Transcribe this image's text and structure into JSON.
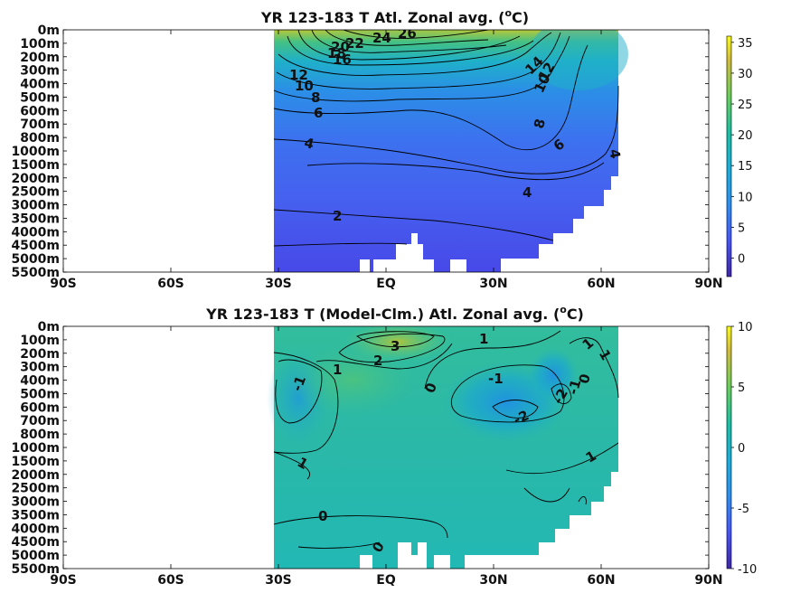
{
  "chart_data": [
    {
      "type": "heatmap",
      "title": "YR 123-183 T Atl. Zonal avg. (",
      "title_sup": "o",
      "title_unit": "C)",
      "y_ticks": [
        "0m",
        "100m",
        "200m",
        "300m",
        "400m",
        "500m",
        "600m",
        "700m",
        "800m",
        "1000m",
        "1500m",
        "2000m",
        "2500m",
        "3000m",
        "3500m",
        "4000m",
        "4500m",
        "5000m",
        "5500m"
      ],
      "x_ticks": [
        "90S",
        "60S",
        "30S",
        "EQ",
        "30N",
        "60N",
        "90N"
      ],
      "colorbar_ticks": [
        "35",
        "30",
        "25",
        "20",
        "15",
        "10",
        "5",
        "0"
      ],
      "colorbar_range": [
        -3,
        36
      ],
      "contour_labels": [
        "26",
        "24",
        "22",
        "20",
        "18",
        "16",
        "14",
        "12",
        "12",
        "10",
        "10",
        "8",
        "8",
        "6",
        "6",
        "4",
        "4",
        "4",
        "2"
      ]
    },
    {
      "type": "heatmap",
      "title": "YR 123-183 T (Model-Clm.) Atl. Zonal avg. (",
      "title_sup": "o",
      "title_unit": "C)",
      "y_ticks": [
        "0m",
        "100m",
        "200m",
        "300m",
        "400m",
        "500m",
        "600m",
        "700m",
        "800m",
        "1000m",
        "1500m",
        "2000m",
        "2500m",
        "3000m",
        "3500m",
        "4000m",
        "4500m",
        "5000m",
        "5500m"
      ],
      "x_ticks": [
        "90S",
        "60S",
        "30S",
        "EQ",
        "30N",
        "60N",
        "90N"
      ],
      "colorbar_ticks": [
        "10",
        "5",
        "0",
        "-5",
        "-10"
      ],
      "colorbar_range": [
        -10,
        10
      ],
      "contour_labels": [
        "3",
        "2",
        "1",
        "1",
        "0",
        "-1",
        "1",
        "-1",
        "-2",
        "-2",
        "-1",
        "0",
        "1",
        "1",
        "1",
        "0",
        "0"
      ]
    }
  ]
}
